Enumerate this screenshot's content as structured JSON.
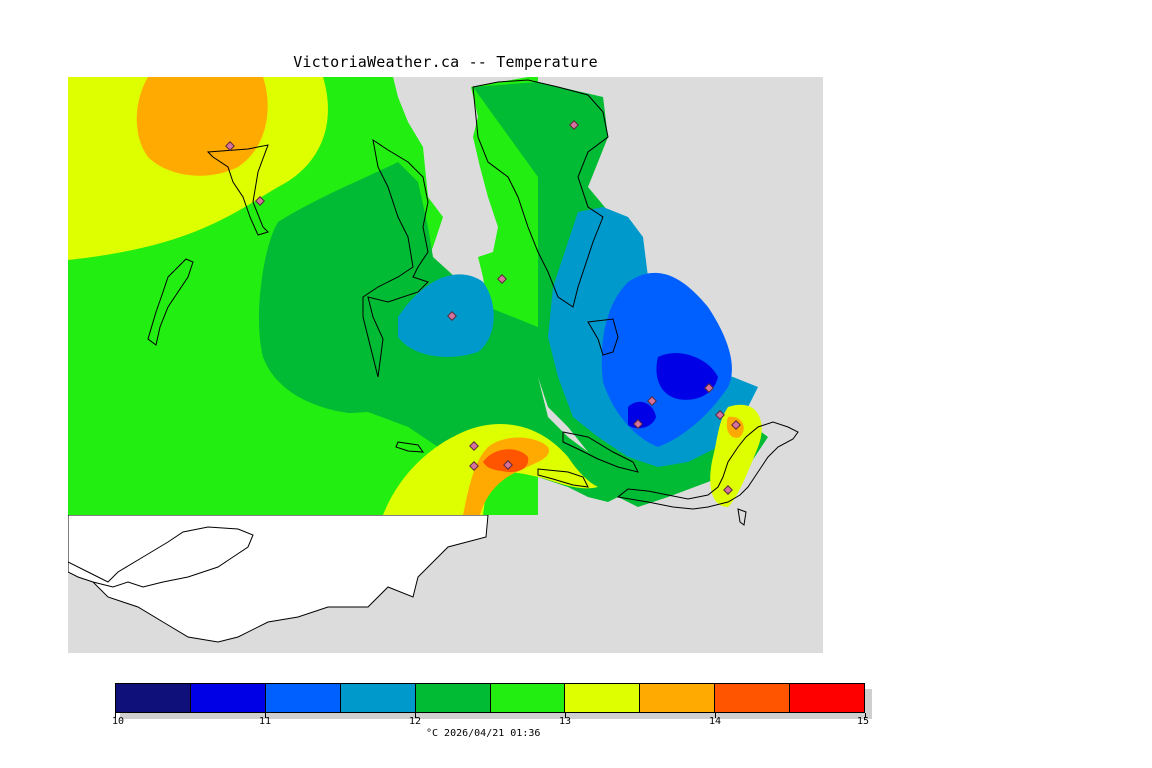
{
  "title": "VictoriaWeather.ca -- Temperature",
  "legend": {
    "colors": [
      "#10107a",
      "#0000e6",
      "#0060ff",
      "#0099cc",
      "#00bb33",
      "#22ee11",
      "#ddff00",
      "#ffaa00",
      "#ff5500",
      "#ff0000"
    ],
    "ticks": [
      "10",
      "11",
      "12",
      "13",
      "14",
      "15"
    ],
    "min": 10,
    "max": 15
  },
  "footer": "°C  2026/04/21 01:36",
  "colors": {
    "land": "#dcdcdc",
    "water": "#ffffff"
  },
  "stations_icon": "diamond-marker-icon"
}
